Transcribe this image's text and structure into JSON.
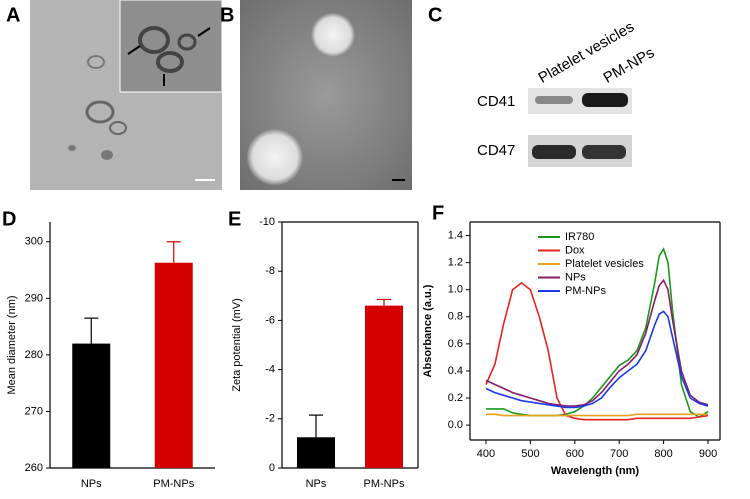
{
  "panel_labels": [
    "A",
    "B",
    "C",
    "D",
    "E",
    "F"
  ],
  "blot": {
    "columns": [
      "Platelet vesicles",
      "PM-NPs"
    ],
    "rows": [
      "CD41",
      "CD47"
    ]
  },
  "chart_data": [
    {
      "type": "bar",
      "ylabel": "Mean diameter (nm)",
      "categories": [
        "NPs",
        "PM-NPs"
      ],
      "values": [
        282,
        296.3
      ],
      "errors": [
        4.5,
        3.7
      ],
      "colors": [
        "#000000",
        "#d40000"
      ],
      "ylim": [
        260,
        303.5
      ],
      "yticks": [
        260,
        270,
        280,
        290,
        300
      ]
    },
    {
      "type": "bar",
      "ylabel": "Zeta potential (mV)",
      "categories": [
        "NPs",
        "PM-NPs"
      ],
      "values": [
        -1.25,
        -6.6
      ],
      "errors": [
        0.9,
        0.25
      ],
      "colors": [
        "#000000",
        "#d40000"
      ],
      "ylim": [
        0,
        -10
      ],
      "yticks": [
        -10,
        -8,
        -6,
        -4,
        -2,
        0
      ]
    },
    {
      "type": "line",
      "xlabel": "Wavelength (nm)",
      "ylabel": "Absorbance (a.u.)",
      "x": [
        400,
        420,
        440,
        460,
        480,
        500,
        520,
        540,
        560,
        580,
        600,
        620,
        640,
        660,
        680,
        700,
        720,
        740,
        760,
        780,
        790,
        800,
        810,
        820,
        840,
        860,
        880,
        900
      ],
      "series": [
        {
          "name": "IR780",
          "color": "#1a9a1a",
          "values": [
            0.12,
            0.12,
            0.12,
            0.09,
            0.08,
            0.07,
            0.07,
            0.07,
            0.07,
            0.08,
            0.1,
            0.14,
            0.2,
            0.28,
            0.36,
            0.44,
            0.48,
            0.55,
            0.72,
            1.05,
            1.25,
            1.3,
            1.2,
            0.85,
            0.3,
            0.1,
            0.06,
            0.1
          ]
        },
        {
          "name": "Dox",
          "color": "#e8231f",
          "values": [
            0.3,
            0.45,
            0.75,
            1.0,
            1.05,
            1.0,
            0.8,
            0.55,
            0.2,
            0.07,
            0.05,
            0.04,
            0.04,
            0.04,
            0.04,
            0.04,
            0.04,
            0.05,
            0.05,
            0.05,
            0.05,
            0.05,
            0.05,
            0.05,
            0.05,
            0.05,
            0.06,
            0.07
          ]
        },
        {
          "name": "Platelet vesicles",
          "color": "#e6a21a",
          "values": [
            0.08,
            0.08,
            0.07,
            0.07,
            0.07,
            0.07,
            0.07,
            0.07,
            0.07,
            0.07,
            0.07,
            0.07,
            0.07,
            0.07,
            0.07,
            0.07,
            0.07,
            0.08,
            0.08,
            0.08,
            0.08,
            0.08,
            0.08,
            0.08,
            0.08,
            0.08,
            0.08,
            0.08
          ]
        },
        {
          "name": "NPs",
          "color": "#8a1a6a",
          "values": [
            0.33,
            0.3,
            0.27,
            0.24,
            0.22,
            0.2,
            0.18,
            0.16,
            0.15,
            0.14,
            0.14,
            0.15,
            0.18,
            0.24,
            0.32,
            0.4,
            0.45,
            0.52,
            0.68,
            0.92,
            1.03,
            1.07,
            1.0,
            0.78,
            0.4,
            0.22,
            0.17,
            0.15
          ]
        },
        {
          "name": "PM-NPs",
          "color": "#1a3ae8",
          "values": [
            0.27,
            0.24,
            0.22,
            0.2,
            0.18,
            0.17,
            0.16,
            0.15,
            0.14,
            0.13,
            0.13,
            0.14,
            0.16,
            0.2,
            0.28,
            0.35,
            0.4,
            0.45,
            0.55,
            0.74,
            0.82,
            0.84,
            0.8,
            0.65,
            0.36,
            0.2,
            0.16,
            0.14
          ]
        }
      ],
      "xlim": [
        364,
        927
      ],
      "xticks": [
        400,
        500,
        600,
        700,
        800,
        900
      ],
      "ylim": [
        -0.11,
        1.5
      ],
      "yticks": [
        {
          "value": 0,
          "label": "0.0"
        },
        {
          "value": 0.2,
          "label": "0.2"
        },
        {
          "value": 0.4,
          "label": "0.4"
        },
        {
          "value": 0.6,
          "label": "0.6"
        },
        {
          "value": 0.8,
          "label": "0.8"
        },
        {
          "value": 1.0,
          "label": "1.0"
        },
        {
          "value": 1.2,
          "label": "1.2"
        },
        {
          "value": 1.4,
          "label": "1.4"
        }
      ]
    }
  ]
}
